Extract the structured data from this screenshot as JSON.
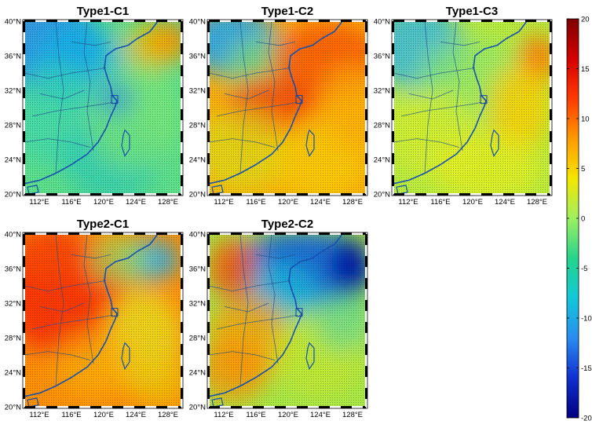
{
  "panels": [
    {
      "title": "Type1-C1",
      "scene": "t1c1",
      "lat_ticks": [
        "40°N",
        "36°N",
        "32°N",
        "28°N",
        "24°N",
        "20°N"
      ],
      "lon_ticks": [
        "112°E",
        "116°E",
        "120°E",
        "124°E",
        "128°E"
      ]
    },
    {
      "title": "Type1-C2",
      "scene": "t1c2",
      "lat_ticks": [
        "40°N",
        "36°N",
        "32°N",
        "28°N",
        "24°N",
        "20°N"
      ],
      "lon_ticks": [
        "112°E",
        "116°E",
        "120°E",
        "124°E",
        "128°E"
      ]
    },
    {
      "title": "Type1-C3",
      "scene": "t1c3",
      "lat_ticks": [
        "40°N",
        "36°N",
        "32°N",
        "28°N",
        "24°N",
        "20°N"
      ],
      "lon_ticks": [
        "112°E",
        "116°E",
        "120°E",
        "124°E",
        "128°E"
      ]
    },
    {
      "title": "Type2-C1",
      "scene": "t2c1",
      "lat_ticks": [
        "40°N",
        "36°N",
        "32°N",
        "28°N",
        "24°N",
        "20°N"
      ],
      "lon_ticks": [
        "112°E",
        "116°E",
        "120°E",
        "124°E",
        "128°E"
      ]
    },
    {
      "title": "Type2-C2",
      "scene": "t2c2",
      "lat_ticks": [
        "40°N",
        "36°N",
        "32°N",
        "28°N",
        "24°N",
        "20°N"
      ],
      "lon_ticks": [
        "112°E",
        "116°E",
        "120°E",
        "124°E",
        "128°E"
      ]
    }
  ],
  "colorbar": {
    "ticks": [
      "20",
      "15",
      "10",
      "5",
      "0",
      "-5",
      "-10",
      "-15",
      "-20"
    ],
    "colors": [
      "#7f0000",
      "#d40000",
      "#ff3a00",
      "#ff9a00",
      "#f5e600",
      "#9ef060",
      "#26d48c",
      "#12c8d8",
      "#2a8cf0",
      "#1030d0",
      "#00007f"
    ]
  }
}
